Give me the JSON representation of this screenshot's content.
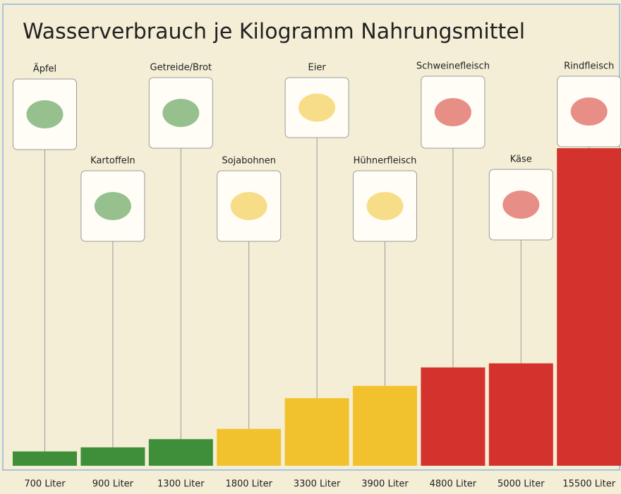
{
  "chart_data": {
    "type": "bar",
    "title": "Wasserverbrauch je Kilogramm Nahrungsmittel",
    "categories": [
      "Äpfel",
      "Kartoffeln",
      "Getreide/Brot",
      "Sojabohnen",
      "Eier",
      "Hühnerfleisch",
      "Schweinefleisch",
      "Käse",
      "Rindfleisch"
    ],
    "values": [
      700,
      900,
      1300,
      1800,
      3300,
      3900,
      4800,
      5000,
      15500
    ],
    "value_labels": [
      "700 Liter",
      "900 Liter",
      "1300 Liter",
      "1800 Liter",
      "3300 Liter",
      "3900 Liter",
      "4800 Liter",
      "5000 Liter",
      "15500 Liter"
    ],
    "colors": [
      "#3f8f3a",
      "#3f8f3a",
      "#3f8f3a",
      "#f2c22e",
      "#f2c22e",
      "#f2c22e",
      "#d3332c",
      "#d3332c",
      "#d3332c"
    ],
    "ylim": [
      0,
      15500
    ]
  }
}
